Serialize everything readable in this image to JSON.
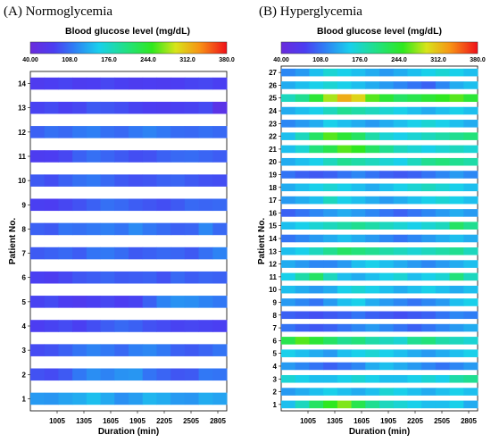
{
  "chart_data": [
    {
      "type": "heatmap",
      "panel_label": "(A) Normoglycemia",
      "colorbar_label": "Blood glucose level (mg/dL)",
      "colorbar_ticks": [
        "40.00",
        "108.0",
        "176.0",
        "244.0",
        "312.0",
        "380.0"
      ],
      "color_range": [
        40,
        380
      ],
      "xlabel": "Duration (min)",
      "ylabel": "Patient No.",
      "x_ticks": [
        "1005",
        "1305",
        "1605",
        "1905",
        "2205",
        "2505",
        "2805"
      ],
      "x_tick_values": [
        1005,
        1305,
        1605,
        1905,
        2205,
        2505,
        2805
      ],
      "xlim": [
        705,
        2905
      ],
      "patients": [
        "1",
        "2",
        "3",
        "4",
        "5",
        "6",
        "7",
        "8",
        "9",
        "10",
        "11",
        "12",
        "13",
        "14"
      ],
      "series": [
        {
          "name": "1",
          "values": [
            130,
            128,
            135,
            140,
            150,
            138,
            125,
            132,
            145,
            140,
            130,
            128,
            140,
            135
          ]
        },
        {
          "name": "2",
          "values": [
            92,
            88,
            96,
            112,
            124,
            118,
            126,
            128,
            110,
            102,
            94,
            96,
            112,
            110
          ]
        },
        {
          "name": "3",
          "values": [
            88,
            92,
            100,
            110,
            118,
            112,
            104,
            116,
            120,
            112,
            100,
            96,
            102,
            110
          ]
        },
        {
          "name": "4",
          "values": [
            80,
            84,
            88,
            82,
            90,
            98,
            104,
            100,
            92,
            88,
            84,
            86,
            84,
            82
          ]
        },
        {
          "name": "5",
          "values": [
            84,
            88,
            80,
            76,
            82,
            86,
            80,
            84,
            100,
            118,
            126,
            124,
            118,
            112
          ]
        },
        {
          "name": "6",
          "values": [
            82,
            78,
            86,
            94,
            98,
            102,
            96,
            98,
            100,
            92,
            104,
            98,
            102,
            100
          ]
        },
        {
          "name": "7",
          "values": [
            96,
            100,
            104,
            98,
            110,
            112,
            106,
            96,
            100,
            104,
            102,
            96,
            108,
            118
          ]
        },
        {
          "name": "8",
          "values": [
            100,
            96,
            110,
            108,
            112,
            116,
            110,
            122,
            112,
            106,
            100,
            102,
            120,
            104
          ]
        },
        {
          "name": "9",
          "values": [
            82,
            80,
            86,
            92,
            100,
            108,
            104,
            98,
            94,
            90,
            96,
            104,
            102,
            104
          ]
        },
        {
          "name": "10",
          "values": [
            96,
            90,
            100,
            108,
            112,
            104,
            96,
            92,
            94,
            100,
            102,
            96,
            92,
            90
          ]
        },
        {
          "name": "11",
          "values": [
            78,
            80,
            86,
            100,
            108,
            102,
            96,
            90,
            92,
            100,
            104,
            106,
            102,
            98
          ]
        },
        {
          "name": "12",
          "values": [
            100,
            108,
            104,
            112,
            116,
            108,
            104,
            112,
            118,
            112,
            106,
            104,
            108,
            104
          ]
        },
        {
          "name": "13",
          "values": [
            84,
            88,
            82,
            86,
            96,
            94,
            90,
            84,
            80,
            78,
            82,
            84,
            88,
            60
          ]
        },
        {
          "name": "14",
          "values": [
            76,
            80,
            84,
            78,
            80,
            86,
            82,
            78,
            80,
            78,
            80,
            84,
            86,
            82
          ]
        }
      ]
    },
    {
      "type": "heatmap",
      "panel_label": "(B) Hyperglycemia",
      "colorbar_label": "Blood glucose level (mg/dL)",
      "colorbar_ticks": [
        "40.00",
        "108.0",
        "176.0",
        "244.0",
        "312.0",
        "380.0"
      ],
      "color_range": [
        40,
        380
      ],
      "xlabel": "Duration (min)",
      "ylabel": "Patient No.",
      "x_ticks": [
        "1005",
        "1305",
        "1605",
        "1905",
        "2205",
        "2505",
        "2805"
      ],
      "x_tick_values": [
        1005,
        1305,
        1605,
        1905,
        2205,
        2505,
        2805
      ],
      "xlim": [
        705,
        2905
      ],
      "patients": [
        "1",
        "2",
        "3",
        "4",
        "5",
        "6",
        "7",
        "8",
        "9",
        "10",
        "11",
        "12",
        "13",
        "14",
        "15",
        "16",
        "17",
        "18",
        "19",
        "20",
        "21",
        "22",
        "23",
        "24",
        "25",
        "26",
        "27"
      ],
      "series": [
        {
          "name": "1",
          "values": [
            150,
            180,
            220,
            250,
            270,
            230,
            200,
            180,
            170,
            160,
            150,
            150,
            160,
            140
          ]
        },
        {
          "name": "2",
          "values": [
            130,
            140,
            150,
            160,
            150,
            140,
            150,
            170,
            160,
            150,
            140,
            150,
            160,
            150
          ]
        },
        {
          "name": "3",
          "values": [
            170,
            160,
            150,
            150,
            160,
            170,
            160,
            150,
            150,
            160,
            170,
            160,
            190,
            200
          ]
        },
        {
          "name": "4",
          "values": [
            130,
            120,
            110,
            100,
            110,
            120,
            140,
            150,
            140,
            130,
            120,
            110,
            120,
            130
          ]
        },
        {
          "name": "5",
          "values": [
            160,
            150,
            140,
            130,
            150,
            160,
            170,
            160,
            150,
            140,
            130,
            140,
            150,
            160
          ]
        },
        {
          "name": "6",
          "values": [
            230,
            260,
            240,
            220,
            200,
            210,
            190,
            180,
            170,
            200,
            210,
            190,
            180,
            170
          ]
        },
        {
          "name": "7",
          "values": [
            110,
            100,
            95,
            100,
            110,
            120,
            130,
            120,
            110,
            100,
            110,
            120,
            130,
            140
          ]
        },
        {
          "name": "8",
          "values": [
            100,
            95,
            90,
            95,
            100,
            110,
            100,
            95,
            90,
            95,
            100,
            110,
            120,
            115
          ]
        },
        {
          "name": "9",
          "values": [
            130,
            120,
            110,
            130,
            150,
            160,
            140,
            130,
            120,
            110,
            120,
            130,
            150,
            160
          ]
        },
        {
          "name": "10",
          "values": [
            150,
            140,
            130,
            140,
            160,
            170,
            160,
            150,
            140,
            150,
            160,
            150,
            140,
            150
          ]
        },
        {
          "name": "11",
          "values": [
            160,
            190,
            220,
            180,
            150,
            140,
            150,
            160,
            170,
            150,
            160,
            170,
            210,
            180
          ]
        },
        {
          "name": "12",
          "values": [
            140,
            130,
            120,
            120,
            130,
            150,
            160,
            150,
            140,
            130,
            120,
            130,
            140,
            150
          ]
        },
        {
          "name": "13",
          "values": [
            150,
            160,
            180,
            200,
            220,
            210,
            200,
            190,
            180,
            170,
            180,
            190,
            200,
            180
          ]
        },
        {
          "name": "14",
          "values": [
            110,
            120,
            130,
            140,
            150,
            140,
            130,
            120,
            110,
            120,
            130,
            140,
            150,
            140
          ]
        },
        {
          "name": "15",
          "values": [
            150,
            160,
            170,
            180,
            190,
            200,
            190,
            180,
            170,
            160,
            170,
            180,
            220,
            200
          ]
        },
        {
          "name": "16",
          "values": [
            100,
            110,
            120,
            130,
            140,
            130,
            120,
            110,
            100,
            110,
            120,
            130,
            140,
            130
          ]
        },
        {
          "name": "17",
          "values": [
            130,
            140,
            150,
            180,
            160,
            150,
            140,
            130,
            140,
            150,
            160,
            170,
            160,
            150
          ]
        },
        {
          "name": "18",
          "values": [
            140,
            150,
            160,
            170,
            160,
            150,
            140,
            150,
            160,
            170,
            180,
            170,
            160,
            150
          ]
        },
        {
          "name": "19",
          "values": [
            110,
            100,
            95,
            100,
            110,
            120,
            110,
            100,
            95,
            100,
            110,
            120,
            130,
            120
          ]
        },
        {
          "name": "20",
          "values": [
            140,
            150,
            160,
            180,
            200,
            190,
            180,
            170,
            160,
            180,
            200,
            210,
            200,
            190
          ]
        },
        {
          "name": "21",
          "values": [
            150,
            170,
            210,
            230,
            260,
            250,
            220,
            200,
            180,
            170,
            160,
            170,
            180,
            170
          ]
        },
        {
          "name": "22",
          "values": [
            150,
            180,
            220,
            260,
            240,
            220,
            190,
            170,
            160,
            170,
            180,
            190,
            200,
            210
          ]
        },
        {
          "name": "23",
          "values": [
            120,
            130,
            140,
            160,
            150,
            140,
            130,
            140,
            150,
            160,
            170,
            160,
            150,
            140
          ]
        },
        {
          "name": "24",
          "values": [
            140,
            150,
            160,
            180,
            200,
            190,
            180,
            170,
            160,
            150,
            140,
            150,
            160,
            150
          ]
        },
        {
          "name": "25",
          "values": [
            180,
            200,
            240,
            280,
            320,
            300,
            260,
            240,
            220,
            230,
            240,
            250,
            260,
            240
          ]
        },
        {
          "name": "26",
          "values": [
            140,
            150,
            160,
            170,
            160,
            150,
            140,
            130,
            120,
            110,
            100,
            120,
            140,
            150
          ]
        },
        {
          "name": "27",
          "values": [
            120,
            130,
            150,
            170,
            160,
            150,
            140,
            130,
            140,
            150,
            160,
            170,
            160,
            150
          ]
        }
      ]
    }
  ]
}
